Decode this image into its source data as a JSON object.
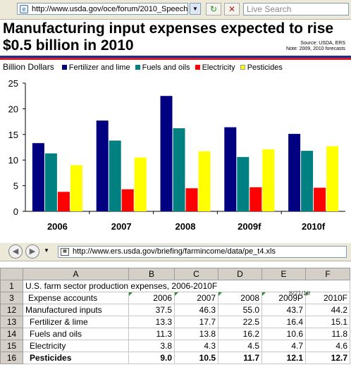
{
  "browser_top": {
    "url": "http://www.usda.gov/oce/forum/2010_Speech",
    "search_placeholder": "Live Search"
  },
  "headline": {
    "line1": "Manufacturing input expenses expected to rise",
    "line2": "$0.5 billion in 2010",
    "source": "Source: USDA, ERS",
    "note": "Note: 2009, 2010 forecasts"
  },
  "colors": {
    "fertilizer": "#000080",
    "fuels": "#008080",
    "electricity": "#ff0000",
    "pesticides": "#ffff00",
    "rule_blue": "#1f2f8f",
    "rule_red": "#d4202a"
  },
  "chart_data": {
    "type": "bar",
    "ylabel": "Billion Dollars",
    "categories": [
      "2006",
      "2007",
      "2008",
      "2009f",
      "2010f"
    ],
    "ylim": [
      0,
      25
    ],
    "yticks": [
      0,
      5,
      10,
      15,
      20,
      25
    ],
    "legend_position": "top",
    "grid": false,
    "series": [
      {
        "name": "Fertilizer and lime",
        "color": "#000080",
        "values": [
          13.3,
          17.7,
          22.5,
          16.4,
          15.1
        ]
      },
      {
        "name": "Fuels and oils",
        "color": "#008080",
        "values": [
          11.3,
          13.8,
          16.2,
          10.6,
          11.8
        ]
      },
      {
        "name": "Electricity",
        "color": "#ff0000",
        "values": [
          3.8,
          4.3,
          4.5,
          4.7,
          4.6
        ]
      },
      {
        "name": "Pesticides",
        "color": "#ffff00",
        "values": [
          9.0,
          10.5,
          11.7,
          12.1,
          12.7
        ]
      }
    ]
  },
  "browser_bottom": {
    "url": "http://www.ers.usda.gov/briefing/farmincome/data/pe_t4.xls"
  },
  "sheet": {
    "col_headers": [
      "",
      "A",
      "B",
      "C",
      "D",
      "E",
      "F"
    ],
    "obscured_text": "8/21/10",
    "rows": [
      {
        "num": "1",
        "cells": [
          "U.S. farm sector production expenses, 2006-2010F",
          "",
          "",
          "",
          "",
          ""
        ]
      },
      {
        "num": "3",
        "cells": [
          "Expense accounts",
          "2006",
          "2007",
          "2008",
          "2009P",
          "2010F"
        ]
      },
      {
        "num": "12",
        "cells": [
          "Manufactured inputs",
          "37.5",
          "46.3",
          "55.0",
          "43.7",
          "44.2"
        ]
      },
      {
        "num": "13",
        "cells": [
          "Fertilizer & lime",
          "13.3",
          "17.7",
          "22.5",
          "16.4",
          "15.1"
        ]
      },
      {
        "num": "14",
        "cells": [
          "Fuels and oils",
          "11.3",
          "13.8",
          "16.2",
          "10.6",
          "11.8"
        ]
      },
      {
        "num": "15",
        "cells": [
          "Electricity",
          "3.8",
          "4.3",
          "4.5",
          "4.7",
          "4.6"
        ]
      },
      {
        "num": "16",
        "cells": [
          "Pesticides",
          "9.0",
          "10.5",
          "11.7",
          "12.1",
          "12.7"
        ]
      }
    ]
  }
}
